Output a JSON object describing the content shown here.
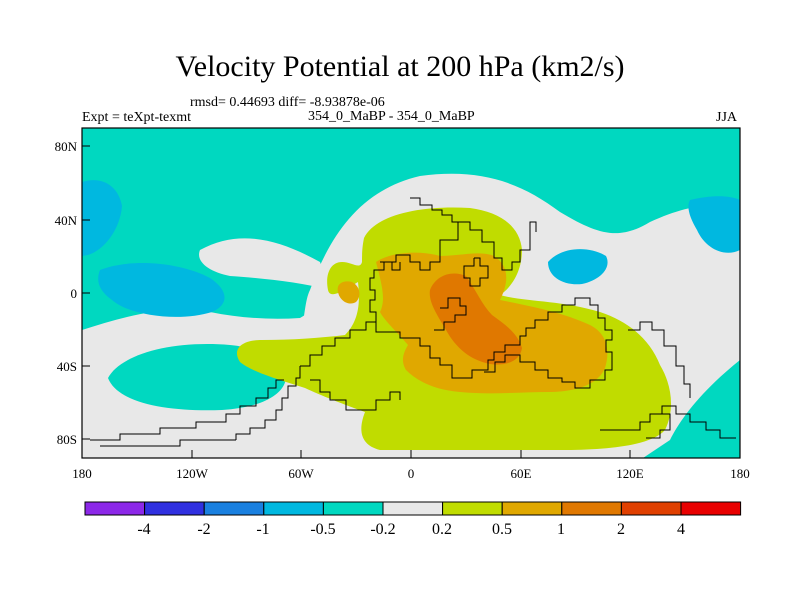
{
  "title": "Velocity Potential at 200 hPa (km2/s)",
  "rmsd_line": "rmsd= 0.44693 diff= -8.93878e-06",
  "experiment": "Expt = teXpt-texmt",
  "case_label": "354_0_MaBP - 354_0_MaBP",
  "season": "JJA",
  "colors": {
    "teal": "#00d8c0",
    "blue": "#00b8e0",
    "gray": "#e8e8e8",
    "lime": "#c0dc00",
    "orange": "#e0a800",
    "red_orange": "#e06800"
  },
  "chart_data": {
    "type": "heatmap",
    "lon_range": [
      -180,
      180
    ],
    "lat_range": [
      -90,
      90
    ],
    "lat_ticks": [
      "80N",
      "40N",
      "0",
      "40S",
      "80S"
    ],
    "lon_ticks": [
      "180",
      "120W",
      "60W",
      "0",
      "60E",
      "120E",
      "180"
    ],
    "colorbar": {
      "labels": [
        "-4",
        "-2",
        "-1",
        "-0.5",
        "-0.2",
        "0.2",
        "0.5",
        "1",
        "2",
        "4"
      ],
      "colors": [
        "#8c28e8",
        "#3030e0",
        "#1a80e0",
        "#00b8e0",
        "#00d8c0",
        "#e8e8e8",
        "#c0dc00",
        "#e0a800",
        "#e07800",
        "#e04000",
        "#e80000"
      ]
    }
  }
}
